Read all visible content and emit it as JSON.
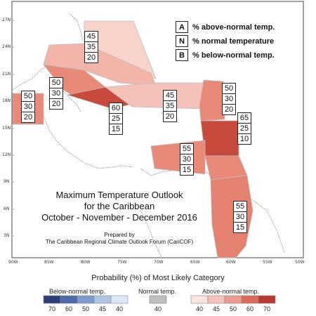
{
  "map": {
    "title_line1": "Maximum Temperature Outlook",
    "title_line2": "for the Caribbean",
    "title_line3": "October - November - December 2016",
    "prepared_by": "Prepared by",
    "forum": "The Caribbean Regional Climate Outlook Forum (CariCOF)",
    "lat_ticks": [
      "27N",
      "24N",
      "21N",
      "18N",
      "15N",
      "12N",
      "9N",
      "6N",
      "3N"
    ],
    "lon_ticks": [
      "90W",
      "85W",
      "80W",
      "75W",
      "70W",
      "65W",
      "60W",
      "55W",
      "50W"
    ]
  },
  "key": {
    "a_letter": "A",
    "a_text": "% above-normal temp.",
    "n_letter": "N",
    "n_text": "% normal temperature",
    "b_letter": "B",
    "b_text": "% below-normal temp."
  },
  "regions": [
    {
      "id": "bahamas",
      "a": "45",
      "n": "35",
      "b": "20"
    },
    {
      "id": "belize",
      "a": "50",
      "n": "30",
      "b": "20"
    },
    {
      "id": "cuba-central",
      "a": "50",
      "n": "30",
      "b": "20"
    },
    {
      "id": "jamaica",
      "a": "60",
      "n": "25",
      "b": "15"
    },
    {
      "id": "hispaniola-pr",
      "a": "45",
      "n": "35",
      "b": "20"
    },
    {
      "id": "leeward",
      "a": "50",
      "n": "30",
      "b": "20"
    },
    {
      "id": "windward",
      "a": "65",
      "n": "25",
      "b": "10"
    },
    {
      "id": "abc-islands",
      "a": "55",
      "n": "30",
      "b": "15"
    },
    {
      "id": "guianas",
      "a": "55",
      "n": "30",
      "b": "15"
    }
  ],
  "legend": {
    "caption": "Probability (%) of Most Likely Category",
    "below_label": "Below-normal temp.",
    "normal_label": "Normal temp.",
    "above_label": "Above-normal temp.",
    "below_values": [
      "70",
      "60",
      "50",
      "45",
      "40"
    ],
    "normal_value": "40",
    "above_values": [
      "40",
      "45",
      "50",
      "60",
      "70"
    ],
    "below_colors": [
      "#2c3f7a",
      "#4d6aa8",
      "#7e9ccb",
      "#aec6e4",
      "#dce8f4"
    ],
    "normal_color": "#bdbdbd",
    "above_colors": [
      "#fbe3e0",
      "#f6c2bb",
      "#ee9a8e",
      "#dc6a58",
      "#b83a33"
    ]
  }
}
